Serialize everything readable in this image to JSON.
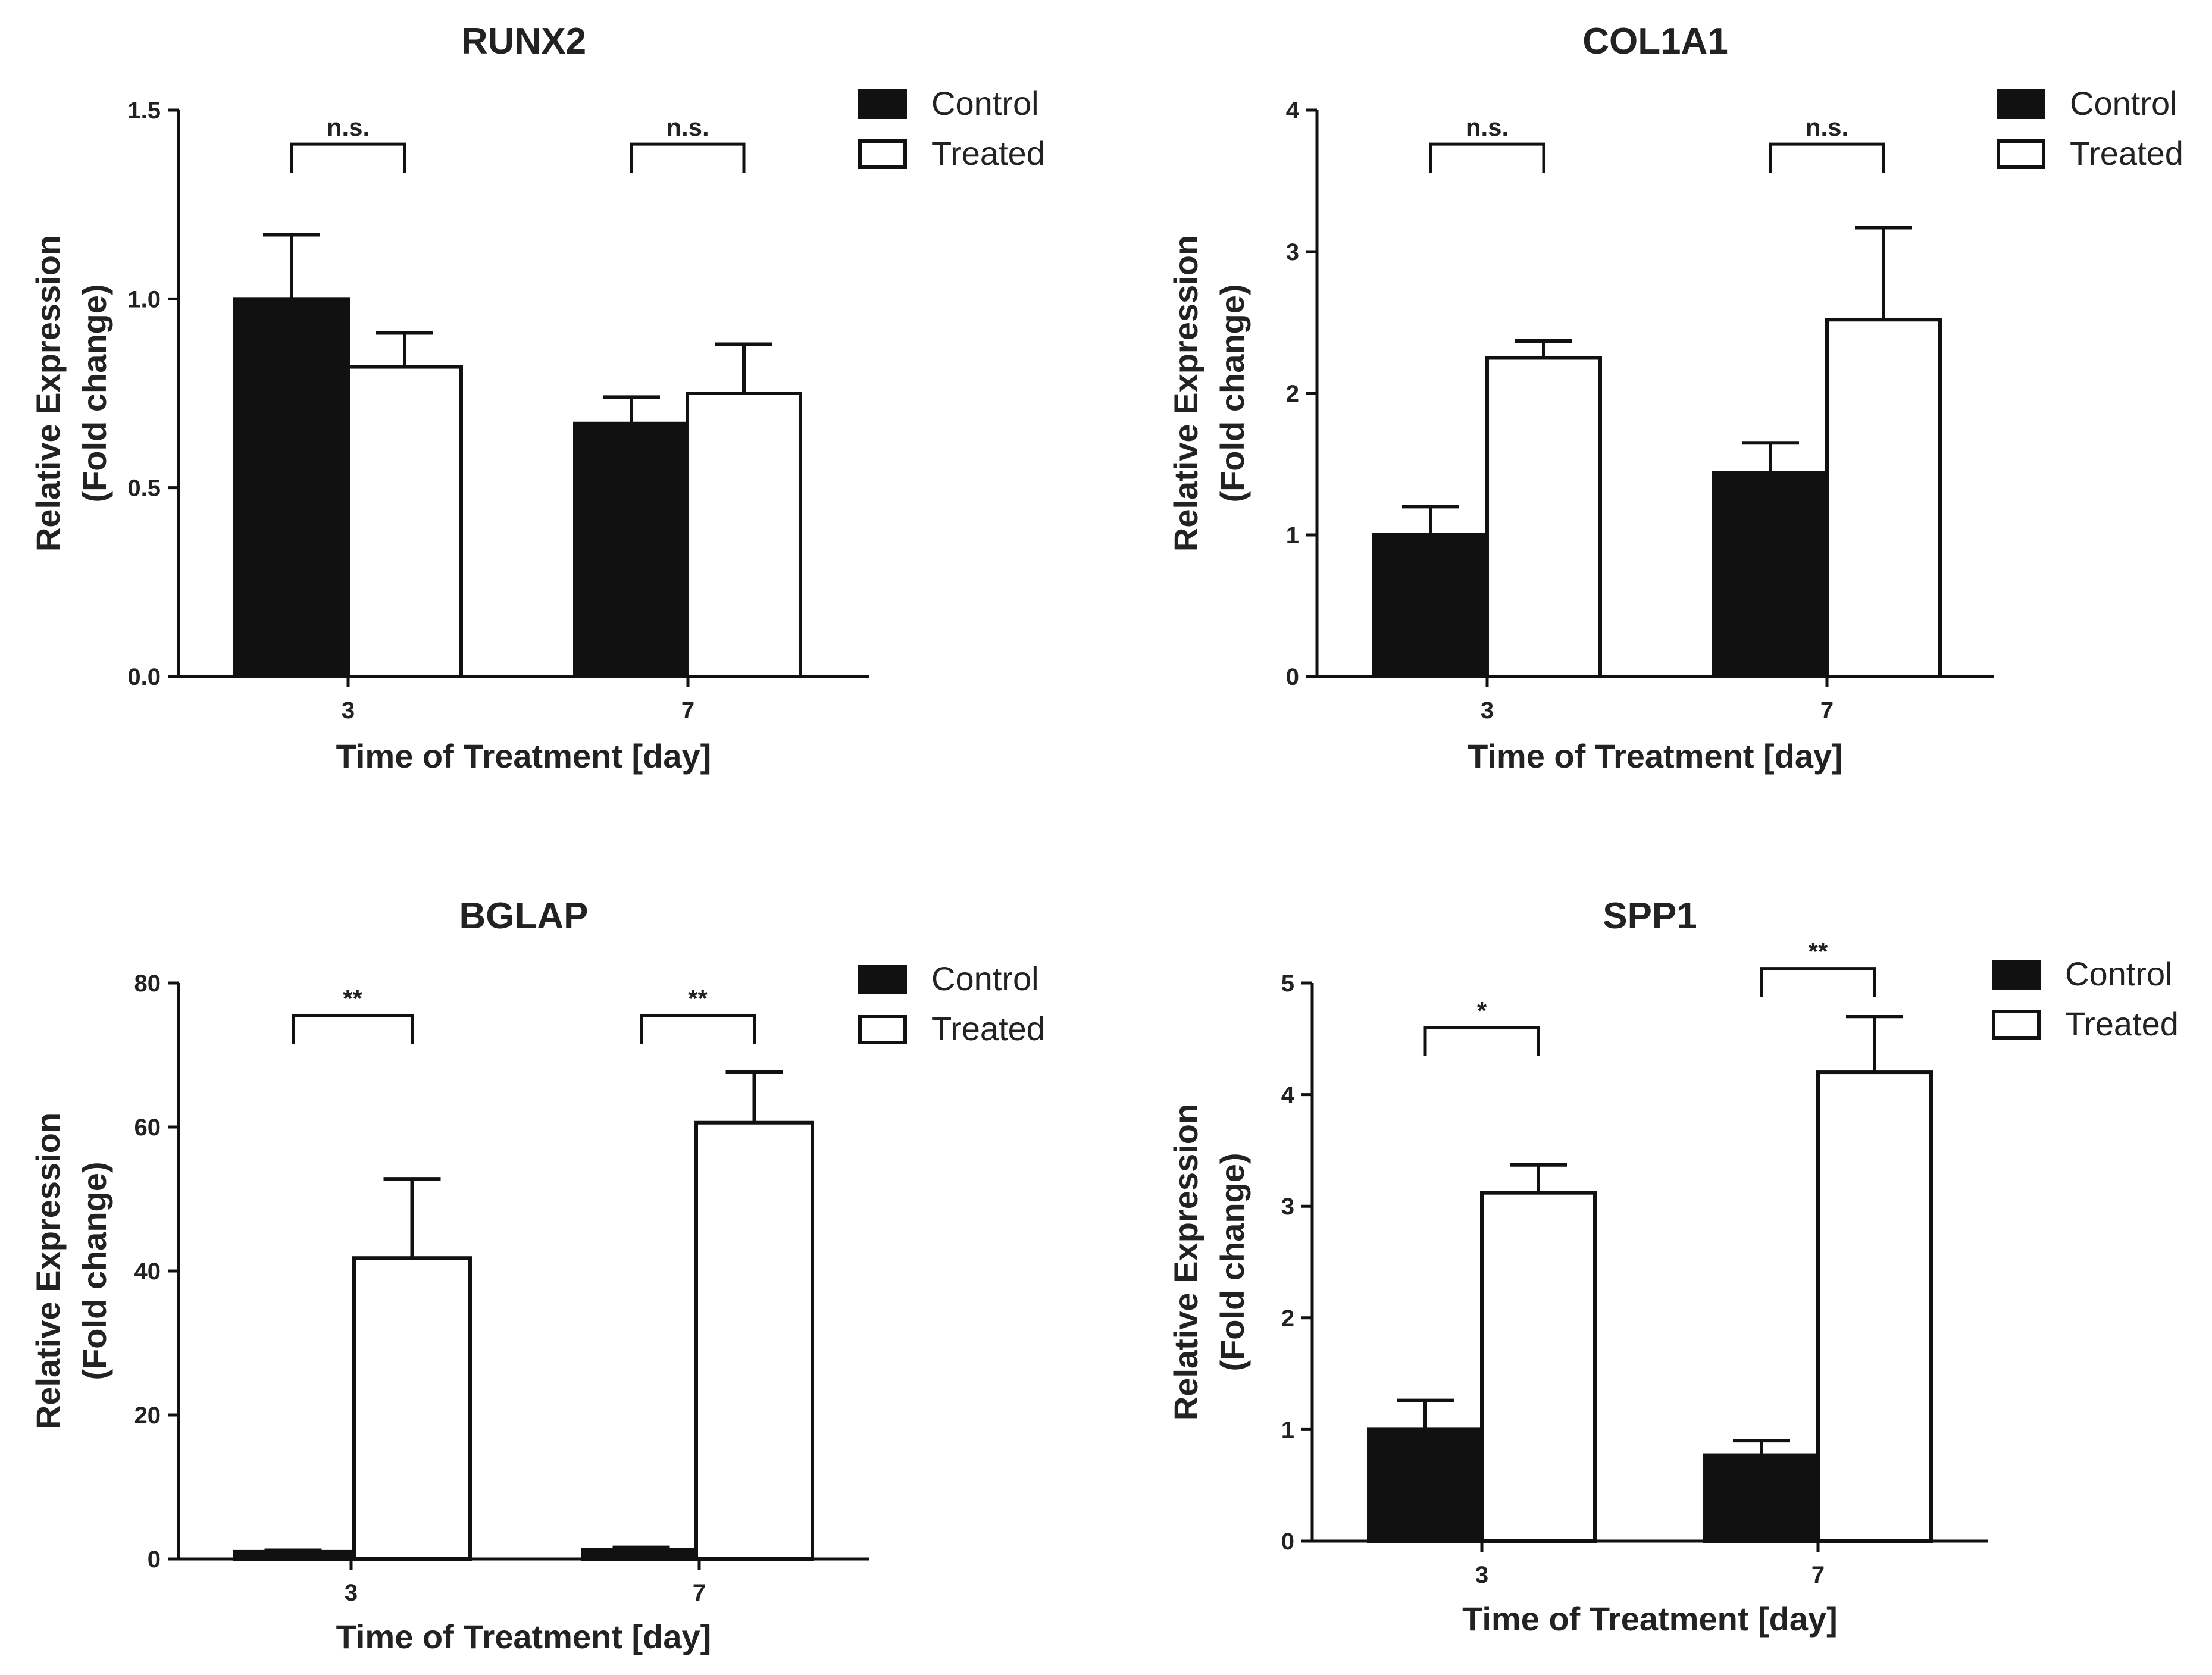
{
  "chart_data": [
    {
      "type": "bar",
      "title": "RUNX2",
      "xlabel": "Time of Treatment [day]",
      "ylabel_line1": "Relative Expression",
      "ylabel_line2": "(Fold change)",
      "categories": [
        "3",
        "7"
      ],
      "ylim": [
        0,
        1.5
      ],
      "yticks": [
        "0.0",
        "0.5",
        "1.0",
        "1.5"
      ],
      "ytick_values": [
        0,
        0.5,
        1.0,
        1.5
      ],
      "series": [
        {
          "name": "Control",
          "values": [
            1.0,
            0.67
          ],
          "errors": [
            0.17,
            0.07
          ],
          "color": "#111111"
        },
        {
          "name": "Treated",
          "values": [
            0.82,
            0.75
          ],
          "errors": [
            0.09,
            0.13
          ],
          "color": "#ffffff"
        }
      ],
      "significance": [
        "n.s.",
        "n.s."
      ],
      "sig_level": 1.41
    },
    {
      "type": "bar",
      "title": "COL1A1",
      "xlabel": "Time of Treatment [day]",
      "ylabel_line1": "Relative Expression",
      "ylabel_line2": "(Fold change)",
      "categories": [
        "3",
        "7"
      ],
      "ylim": [
        0,
        4
      ],
      "yticks": [
        "0",
        "1",
        "2",
        "3",
        "4"
      ],
      "ytick_values": [
        0,
        1,
        2,
        3,
        4
      ],
      "series": [
        {
          "name": "Control",
          "values": [
            1.0,
            1.44
          ],
          "errors": [
            0.2,
            0.21
          ],
          "color": "#111111"
        },
        {
          "name": "Treated",
          "values": [
            2.25,
            2.52
          ],
          "errors": [
            0.12,
            0.65
          ],
          "color": "#ffffff"
        }
      ],
      "significance": [
        "n.s.",
        "n.s."
      ],
      "sig_level": 3.76
    },
    {
      "type": "bar",
      "title": "BGLAP",
      "xlabel": "Time of Treatment [day]",
      "ylabel_line1": "Relative Expression",
      "ylabel_line2": "(Fold change)",
      "categories": [
        "3",
        "7"
      ],
      "ylim": [
        0,
        80
      ],
      "yticks": [
        "0",
        "20",
        "40",
        "60",
        "80"
      ],
      "ytick_values": [
        0,
        20,
        40,
        60,
        80
      ],
      "series": [
        {
          "name": "Control",
          "values": [
            1.0,
            1.3
          ],
          "errors": [
            0.2,
            0.3
          ],
          "color": "#111111"
        },
        {
          "name": "Treated",
          "values": [
            41.8,
            60.6
          ],
          "errors": [
            11.0,
            7.0
          ],
          "color": "#ffffff"
        }
      ],
      "significance": [
        "**",
        "**"
      ],
      "sig_level": 75.5
    },
    {
      "type": "bar",
      "title": "SPP1",
      "xlabel": "Time of Treatment [day]",
      "ylabel_line1": "Relative Expression",
      "ylabel_line2": "(Fold change)",
      "categories": [
        "3",
        "7"
      ],
      "ylim": [
        0,
        5
      ],
      "yticks": [
        "0",
        "1",
        "2",
        "3",
        "4",
        "5"
      ],
      "ytick_values": [
        0,
        1,
        2,
        3,
        4,
        5
      ],
      "series": [
        {
          "name": "Control",
          "values": [
            1.0,
            0.77
          ],
          "errors": [
            0.26,
            0.13
          ],
          "color": "#111111"
        },
        {
          "name": "Treated",
          "values": [
            3.12,
            4.2
          ],
          "errors": [
            0.25,
            0.5
          ],
          "color": "#ffffff"
        }
      ],
      "significance": [
        "*",
        "**"
      ],
      "sig_levels": [
        4.6,
        5.13
      ]
    }
  ]
}
